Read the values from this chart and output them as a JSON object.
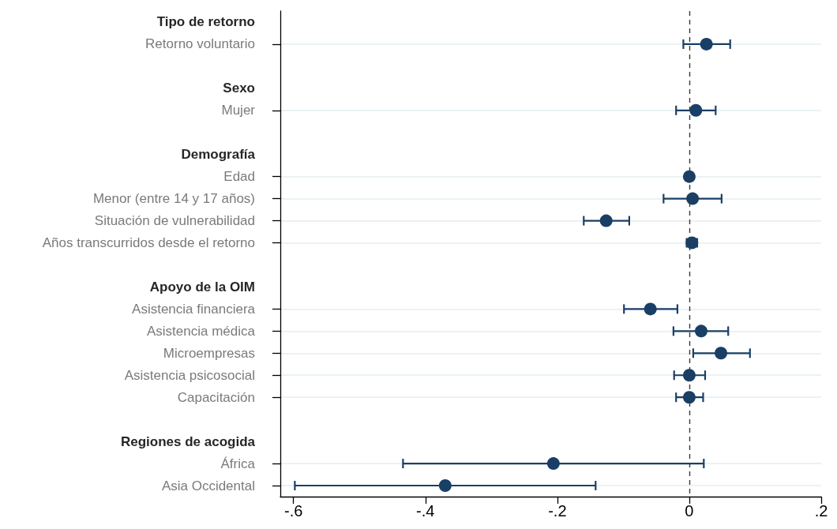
{
  "chart_data": {
    "type": "scatter",
    "orientation": "horizontal",
    "categories": [
      "Tipo de retorno",
      "Retorno voluntario",
      null,
      "Sexo",
      "Mujer",
      null,
      "Demografía",
      "Edad",
      "Menor (entre 14 y 17 años)",
      "Situación de vulnerabilidad",
      "Años transcurridos desde el retorno",
      null,
      "Apoyo de la OIM",
      "Asistencia financiera",
      "Asistencia médica",
      "Microempresas",
      "Asistencia psicosocial",
      "Capacitación",
      null,
      "Regiones de acogida",
      "África",
      "Asia Occidental"
    ],
    "values": [
      null,
      0.026,
      null,
      null,
      0.01,
      null,
      null,
      0.0,
      0.005,
      -0.126,
      0.004,
      null,
      null,
      -0.059,
      0.018,
      0.048,
      0.0,
      0.0,
      null,
      null,
      -0.206,
      -0.37
    ],
    "errors": [
      null,
      [
        -0.009,
        0.062
      ],
      null,
      null,
      [
        -0.02,
        0.04
      ],
      null,
      null,
      null,
      [
        -0.039,
        0.049
      ],
      [
        -0.16,
        -0.091
      ],
      [
        -0.004,
        0.012
      ],
      null,
      null,
      [
        -0.099,
        -0.018
      ],
      [
        -0.024,
        0.059
      ],
      [
        0.006,
        0.092
      ],
      [
        -0.023,
        0.024
      ],
      [
        -0.02,
        0.021
      ],
      null,
      null,
      [
        -0.434,
        0.022
      ],
      [
        -0.598,
        -0.142
      ]
    ],
    "color": "#1a3f66",
    "marker": "circle",
    "xlim": [
      -0.62,
      0.2
    ],
    "xticks": [
      {
        "value": -0.6,
        "label": "-.6"
      },
      {
        "value": -0.4,
        "label": "-.4"
      },
      {
        "value": -0.2,
        "label": "-.2"
      },
      {
        "value": 0,
        "label": "0"
      },
      {
        "value": 0.2,
        "label": ".2"
      }
    ],
    "ref_lines": [
      {
        "axis": "x",
        "value": 0,
        "color": "#3a3a3a",
        "line_style": "dashed"
      }
    ],
    "grid": "y"
  }
}
